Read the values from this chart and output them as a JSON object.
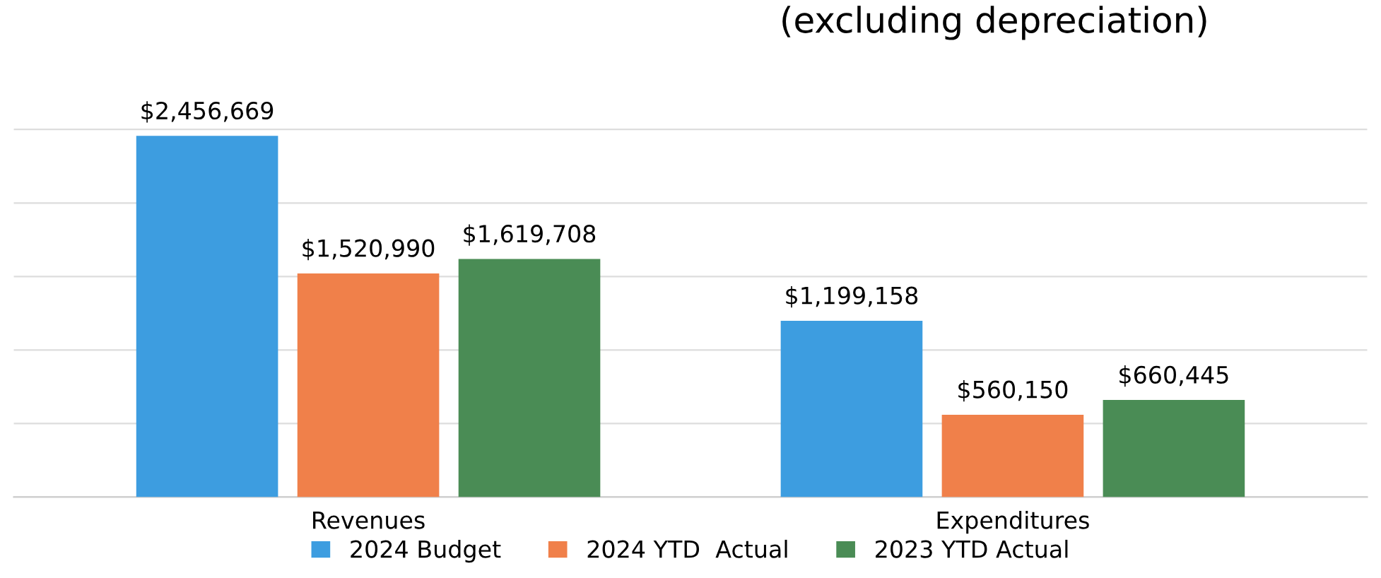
{
  "chart_data": {
    "type": "bar",
    "title": "(excluding depreciation)",
    "categories": [
      "Revenues",
      "Expenditures"
    ],
    "series": [
      {
        "name": "2024 Budget",
        "color": "#3d9de0",
        "values": [
          2456669,
          1199158
        ],
        "value_labels": [
          "$2,456,669",
          "$1,199,158"
        ]
      },
      {
        "name": "2024 YTD  Actual",
        "color": "#f0804a",
        "values": [
          1520990,
          560150
        ],
        "value_labels": [
          "$1,520,990",
          "$560,150"
        ]
      },
      {
        "name": "2023 YTD Actual",
        "color": "#4a8c55",
        "values": [
          1619708,
          660445
        ],
        "value_labels": [
          "$1,619,708",
          "$660,445"
        ]
      }
    ],
    "grid": "y",
    "legend": "bottom",
    "tick_labels": "x"
  }
}
